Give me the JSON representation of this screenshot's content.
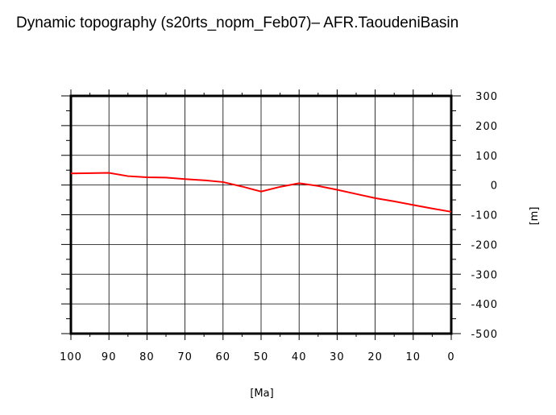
{
  "chart_data": {
    "type": "line",
    "title": "Dynamic topography (s20rts_nopm_Feb07)– AFR.TaoudeniBasin",
    "xlabel": "[Ma]",
    "ylabel": "[m]",
    "xlim": [
      100,
      0
    ],
    "ylim": [
      -500,
      300
    ],
    "xticks": [
      100,
      90,
      80,
      70,
      60,
      50,
      40,
      30,
      20,
      10,
      0
    ],
    "yticks": [
      300,
      200,
      100,
      0,
      -100,
      -200,
      -300,
      -400,
      -500
    ],
    "grid": true,
    "line_color": "#ff0000",
    "x": [
      100,
      95,
      90,
      85,
      80,
      75,
      70,
      65,
      60,
      55,
      50,
      45,
      40,
      35,
      30,
      25,
      20,
      15,
      10,
      5,
      0
    ],
    "y": [
      39,
      40,
      41,
      30,
      26,
      25,
      20,
      16,
      10,
      -5,
      -22,
      -6,
      6,
      -3,
      -16,
      -30,
      -44,
      -55,
      -67,
      -79,
      -90
    ]
  }
}
